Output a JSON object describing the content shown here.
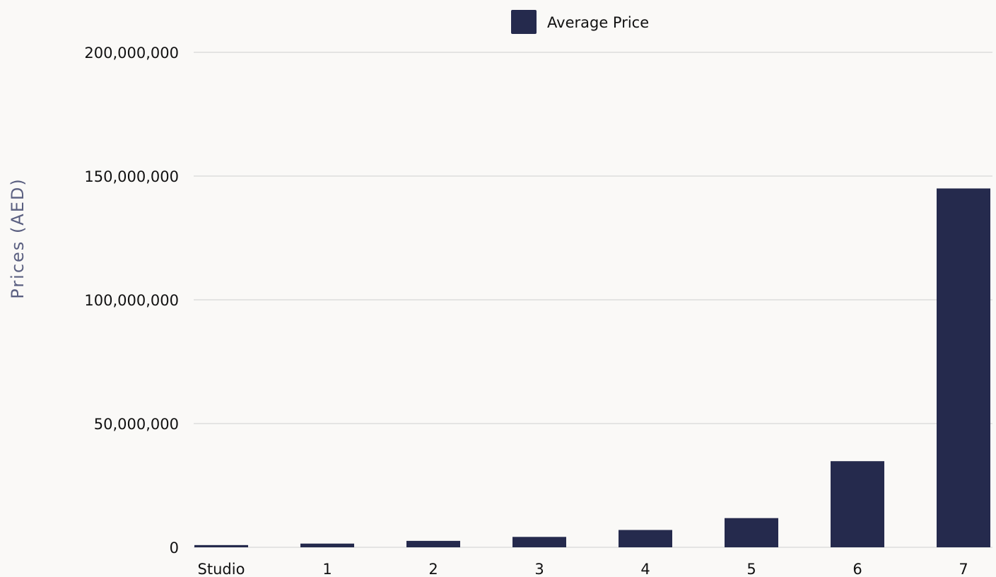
{
  "chart_data": {
    "type": "bar",
    "title": "",
    "xlabel": "",
    "ylabel": "Prices (AED)",
    "categories": [
      "Studio",
      "1",
      "2",
      "3",
      "4",
      "5",
      "6",
      "7"
    ],
    "series": [
      {
        "name": "Average Price",
        "color": "#252a4d",
        "values": [
          900000,
          1500000,
          2600000,
          4200000,
          7000000,
          11800000,
          34800000,
          145000000
        ]
      }
    ],
    "ylim": [
      0,
      200000000
    ],
    "yticks": [
      0,
      50000000,
      100000000,
      150000000,
      200000000
    ],
    "ytick_labels": [
      "0",
      "50,000,000",
      "100,000,000",
      "150,000,000",
      "200,000,000"
    ],
    "grid": true,
    "legend_position": "top-center"
  }
}
